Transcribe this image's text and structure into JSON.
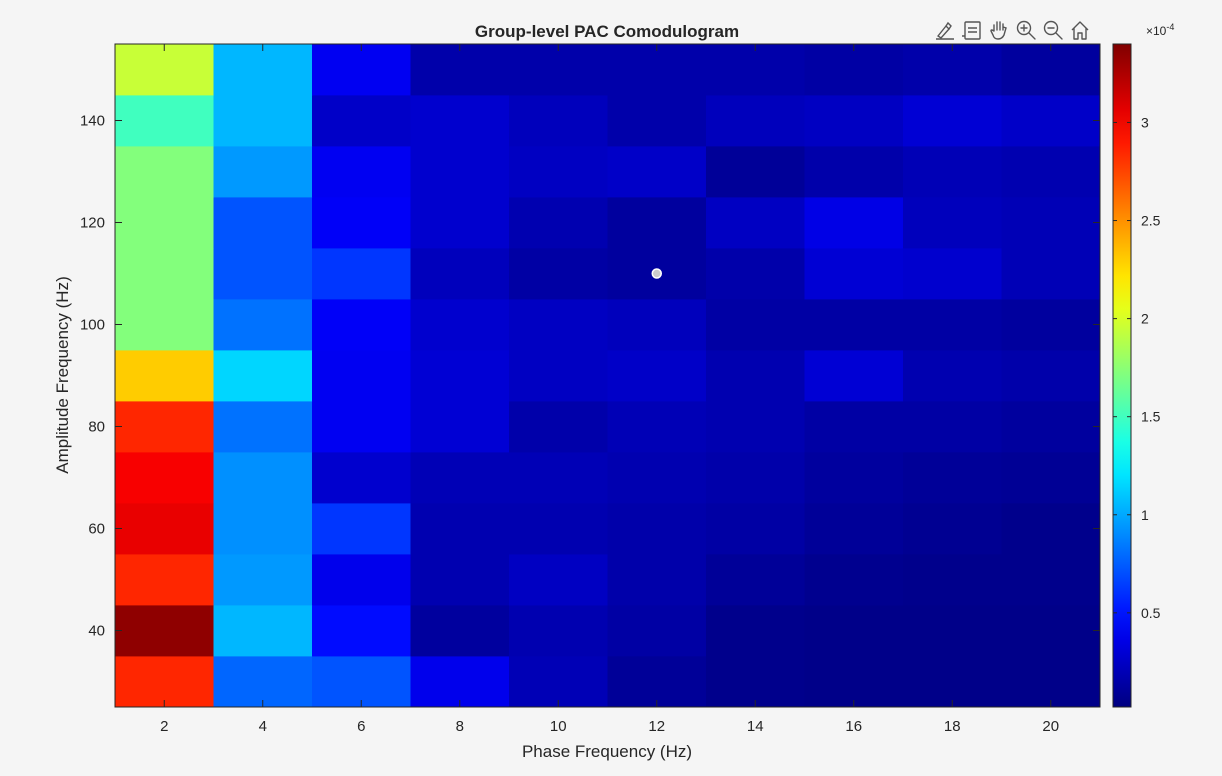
{
  "chart_data": {
    "type": "heatmap",
    "title": "Group-level PAC Comodulogram",
    "xlabel": "Phase Frequency (Hz)",
    "ylabel": "Amplitude Frequency (Hz)",
    "x": [
      2,
      4,
      6,
      8,
      10,
      12,
      14,
      16,
      18,
      20
    ],
    "y": [
      30,
      40,
      50,
      60,
      70,
      80,
      90,
      100,
      110,
      120,
      130,
      140,
      150
    ],
    "xlim": [
      1,
      21
    ],
    "ylim": [
      25,
      155
    ],
    "xticks": [
      2,
      4,
      6,
      8,
      10,
      12,
      14,
      16,
      18,
      20
    ],
    "yticks": [
      40,
      60,
      80,
      100,
      120,
      140
    ],
    "values_scale": 0.0001,
    "values": [
      [
        2.85,
        0.78,
        0.72,
        0.38,
        0.2,
        0.1,
        0.06,
        0.05,
        0.05,
        0.05
      ],
      [
        3.35,
        1.05,
        0.48,
        0.12,
        0.18,
        0.14,
        0.06,
        0.05,
        0.05,
        0.05
      ],
      [
        2.85,
        0.95,
        0.38,
        0.18,
        0.24,
        0.16,
        0.1,
        0.07,
        0.06,
        0.06
      ],
      [
        3.05,
        0.92,
        0.62,
        0.18,
        0.18,
        0.16,
        0.14,
        0.1,
        0.08,
        0.06
      ],
      [
        3.0,
        0.92,
        0.28,
        0.2,
        0.2,
        0.18,
        0.16,
        0.12,
        0.1,
        0.09
      ],
      [
        2.85,
        0.82,
        0.4,
        0.3,
        0.16,
        0.2,
        0.18,
        0.14,
        0.14,
        0.12
      ],
      [
        2.3,
        1.15,
        0.4,
        0.3,
        0.24,
        0.26,
        0.18,
        0.3,
        0.18,
        0.16
      ],
      [
        1.72,
        0.82,
        0.42,
        0.28,
        0.24,
        0.22,
        0.14,
        0.14,
        0.14,
        0.12
      ],
      [
        1.72,
        0.72,
        0.62,
        0.22,
        0.14,
        0.12,
        0.16,
        0.3,
        0.28,
        0.2
      ],
      [
        1.72,
        0.72,
        0.42,
        0.28,
        0.18,
        0.12,
        0.24,
        0.36,
        0.22,
        0.2
      ],
      [
        1.72,
        0.95,
        0.4,
        0.28,
        0.24,
        0.26,
        0.1,
        0.16,
        0.2,
        0.18
      ],
      [
        1.5,
        1.05,
        0.26,
        0.28,
        0.22,
        0.16,
        0.22,
        0.24,
        0.3,
        0.26
      ],
      [
        1.95,
        1.05,
        0.4,
        0.16,
        0.16,
        0.16,
        0.16,
        0.14,
        0.16,
        0.12
      ]
    ],
    "colormap": "jet",
    "clim": [
      0.02,
      3.4
    ],
    "colorbar": {
      "ticks": [
        0.5,
        1,
        1.5,
        2,
        2.5,
        3
      ],
      "tick_labels": [
        "0.5",
        "1",
        "1.5",
        "2",
        "2.5",
        "3"
      ],
      "multiplier": "×10",
      "exponent": "-4"
    },
    "marker": {
      "x": 12,
      "y": 110,
      "color": "#cccccc"
    },
    "grid": false
  },
  "toolbar": {
    "items": [
      {
        "name": "brush",
        "icon": "brush-icon"
      },
      {
        "name": "datatips",
        "icon": "datatip-icon"
      },
      {
        "name": "pan",
        "icon": "pan-hand-icon"
      },
      {
        "name": "zoom-in",
        "icon": "zoom-in-icon"
      },
      {
        "name": "zoom-out",
        "icon": "zoom-out-icon"
      },
      {
        "name": "home",
        "icon": "home-icon"
      }
    ]
  }
}
